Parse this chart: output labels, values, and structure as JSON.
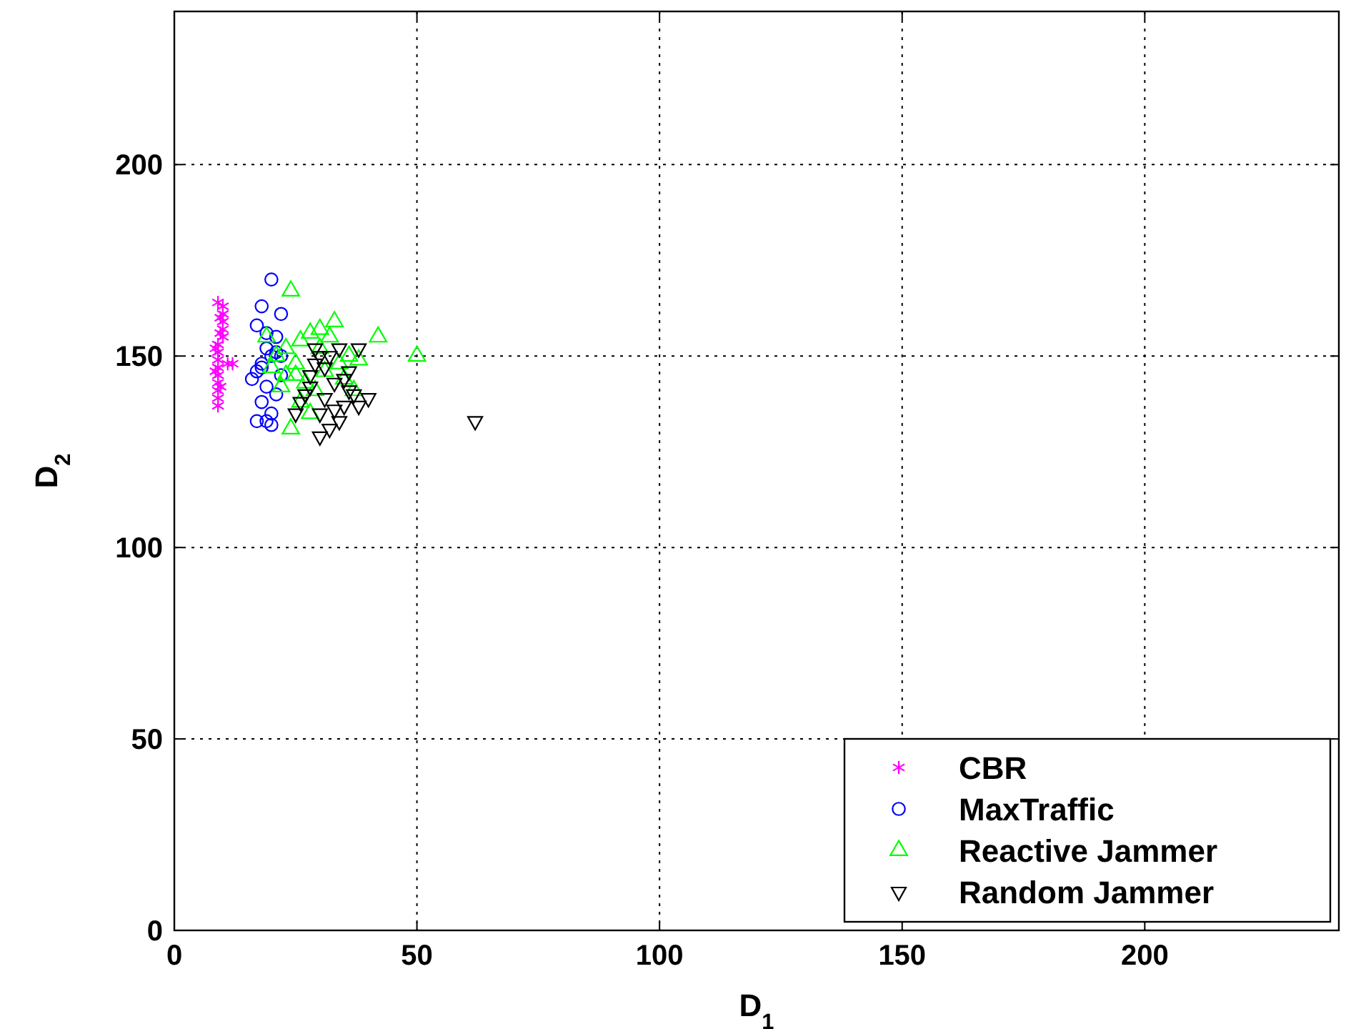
{
  "chart_data": {
    "type": "scatter",
    "xlabel": "D$_{1}$",
    "ylabel": "D$_{2}$",
    "xlim": [
      0,
      240
    ],
    "ylim": [
      0,
      240
    ],
    "xticks": [
      0,
      50,
      100,
      150,
      200
    ],
    "yticks": [
      0,
      50,
      100,
      150,
      200
    ],
    "grid": true,
    "legend": "bottom right",
    "series": [
      {
        "name": "CBR",
        "color": "#ff00ff",
        "marker": "cross",
        "x": [
          9,
          9,
          9,
          9,
          9,
          9,
          9,
          9,
          9,
          10,
          10,
          10,
          10,
          10,
          8.5,
          8.5,
          9.5,
          9.5,
          11,
          12,
          9,
          9.5
        ],
        "values": [
          137,
          139,
          141,
          143,
          145,
          147,
          149,
          151,
          153,
          155,
          157,
          159,
          161,
          163,
          146,
          152,
          160,
          142,
          148,
          148,
          164,
          156
        ]
      },
      {
        "name": "MaxTraffic",
        "color": "#0000ff",
        "marker": "circle",
        "x": [
          20,
          18,
          17,
          22,
          21,
          19,
          20,
          18,
          17,
          16,
          19,
          21,
          22,
          18,
          20,
          19,
          17,
          18,
          20,
          22,
          19,
          21
        ],
        "values": [
          170,
          163,
          158,
          161,
          155,
          152,
          150,
          148,
          146,
          144,
          142,
          140,
          150,
          138,
          135,
          133,
          133,
          147,
          132,
          145,
          156,
          151
        ]
      },
      {
        "name": "Reactive Jammer",
        "color": "#00ff00",
        "marker": "triangle",
        "x": [
          24,
          50,
          42,
          33,
          30,
          28,
          26,
          23,
          21,
          20,
          25,
          27,
          29,
          31,
          34,
          36,
          22,
          24,
          26,
          30,
          32,
          35,
          38,
          28,
          25,
          23,
          37,
          19
        ],
        "values": [
          167,
          150,
          155,
          159,
          157,
          156,
          154,
          152,
          150,
          147,
          145,
          143,
          141,
          146,
          148,
          150,
          142,
          131,
          138,
          152,
          155,
          144,
          149,
          135,
          148,
          145,
          141,
          155
        ]
      },
      {
        "name": "Random Jammer",
        "color": "#000000",
        "marker": "triangle-down",
        "x": [
          62,
          38,
          36,
          40,
          35,
          33,
          31,
          30,
          29,
          28,
          27,
          30,
          32,
          34,
          36,
          26,
          28,
          31,
          33,
          35,
          37,
          29,
          32,
          30,
          25,
          38,
          34
        ],
        "values": [
          133,
          152,
          141,
          139,
          137,
          143,
          147,
          150,
          152,
          145,
          140,
          135,
          131,
          133,
          146,
          138,
          142,
          139,
          136,
          144,
          140,
          148,
          150,
          129,
          135,
          137,
          152
        ]
      }
    ]
  }
}
